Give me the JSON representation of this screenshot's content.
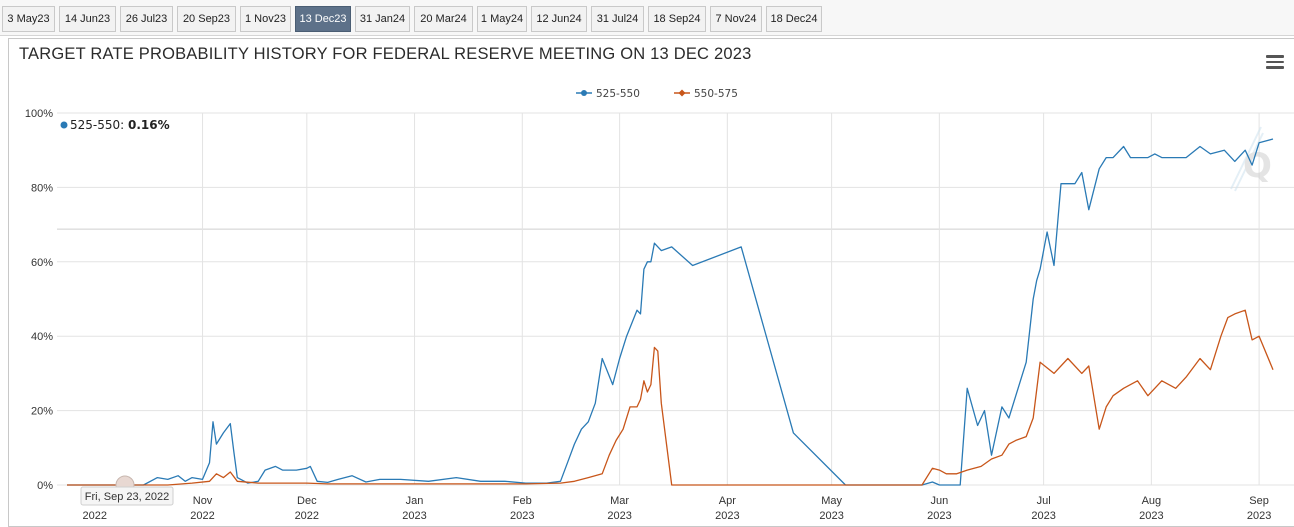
{
  "tabs": [
    {
      "label": "3 May23",
      "active": false
    },
    {
      "label": "14 Jun23",
      "active": false
    },
    {
      "label": "26 Jul23",
      "active": false
    },
    {
      "label": "20 Sep23",
      "active": false
    },
    {
      "label": "1 Nov23",
      "active": false
    },
    {
      "label": "13 Dec23",
      "active": true
    },
    {
      "label": "31 Jan24",
      "active": false
    },
    {
      "label": "20 Mar24",
      "active": false
    },
    {
      "label": "1 May24",
      "active": false
    },
    {
      "label": "12 Jun24",
      "active": false
    },
    {
      "label": "31 Jul24",
      "active": false
    },
    {
      "label": "18 Sep24",
      "active": false
    },
    {
      "label": "7 Nov24",
      "active": false
    },
    {
      "label": "18 Dec24",
      "active": false
    }
  ],
  "colors": {
    "tab_active": "#5d7189",
    "series_525": "#2a7ab5",
    "series_550": "#c8561a",
    "grid": "#e3e3e3"
  },
  "tooltip": {
    "series_label": "525-550: ",
    "value": "0.16%"
  },
  "crosshair_label": "Fri, Sep 23, 2022",
  "chart_data": {
    "type": "line",
    "title": "TARGET RATE PROBABILITY HISTORY FOR FEDERAL RESERVE MEETING ON 13 DEC 2023",
    "xlabel": "",
    "ylabel": "",
    "ylim": [
      0,
      100
    ],
    "xlim": [
      "2022-09-23",
      "2023-09-05"
    ],
    "y_ticks": [
      "0%",
      "20%",
      "40%",
      "60%",
      "80%",
      "100%"
    ],
    "x_ticks": [
      {
        "month": "",
        "year": "2022",
        "date": "2022-10-01"
      },
      {
        "month": "Nov",
        "year": "2022",
        "date": "2022-11-01"
      },
      {
        "month": "Dec",
        "year": "2022",
        "date": "2022-12-01"
      },
      {
        "month": "Jan",
        "year": "2023",
        "date": "2023-01-01"
      },
      {
        "month": "Feb",
        "year": "2023",
        "date": "2023-02-01"
      },
      {
        "month": "Mar",
        "year": "2023",
        "date": "2023-03-01"
      },
      {
        "month": "Apr",
        "year": "2023",
        "date": "2023-04-01"
      },
      {
        "month": "May",
        "year": "2023",
        "date": "2023-05-01"
      },
      {
        "month": "Jun",
        "year": "2023",
        "date": "2023-06-01"
      },
      {
        "month": "Jul",
        "year": "2023",
        "date": "2023-07-01"
      },
      {
        "month": "Aug",
        "year": "2023",
        "date": "2023-08-01"
      },
      {
        "month": "Sep",
        "year": "2023",
        "date": "2023-09-01"
      }
    ],
    "grid": true,
    "legend_position": "top-center",
    "series": [
      {
        "name": "525-550",
        "x": [
          "2022-09-23",
          "2022-10-15",
          "2022-10-19",
          "2022-10-22",
          "2022-10-25",
          "2022-10-27",
          "2022-10-29",
          "2022-11-01",
          "2022-11-03",
          "2022-11-04",
          "2022-11-05",
          "2022-11-07",
          "2022-11-09",
          "2022-11-10",
          "2022-11-11",
          "2022-11-14",
          "2022-11-17",
          "2022-11-19",
          "2022-11-22",
          "2022-11-24",
          "2022-11-28",
          "2022-12-01",
          "2022-12-02",
          "2022-12-04",
          "2022-12-07",
          "2022-12-10",
          "2022-12-14",
          "2022-12-18",
          "2022-12-22",
          "2022-12-28",
          "2023-01-05",
          "2023-01-13",
          "2023-01-20",
          "2023-01-27",
          "2023-02-02",
          "2023-02-08",
          "2023-02-12",
          "2023-02-14",
          "2023-02-16",
          "2023-02-18",
          "2023-02-20",
          "2023-02-22",
          "2023-02-24",
          "2023-02-27",
          "2023-03-01",
          "2023-03-03",
          "2023-03-06",
          "2023-03-07",
          "2023-03-08",
          "2023-03-09",
          "2023-03-10",
          "2023-03-11",
          "2023-03-13",
          "2023-03-16",
          "2023-03-22",
          "2023-04-05",
          "2023-04-20",
          "2023-05-05",
          "2023-05-20",
          "2023-05-27",
          "2023-05-30",
          "2023-06-01",
          "2023-06-02",
          "2023-06-05",
          "2023-06-07",
          "2023-06-09",
          "2023-06-12",
          "2023-06-14",
          "2023-06-16",
          "2023-06-19",
          "2023-06-21",
          "2023-06-23",
          "2023-06-26",
          "2023-06-28",
          "2023-06-29",
          "2023-06-30",
          "2023-07-02",
          "2023-07-04",
          "2023-07-06",
          "2023-07-10",
          "2023-07-12",
          "2023-07-14",
          "2023-07-17",
          "2023-07-19",
          "2023-07-21",
          "2023-07-24",
          "2023-07-26",
          "2023-07-28",
          "2023-07-31",
          "2023-08-02",
          "2023-08-04",
          "2023-08-08",
          "2023-08-11",
          "2023-08-15",
          "2023-08-18",
          "2023-08-22",
          "2023-08-25",
          "2023-08-28",
          "2023-08-30",
          "2023-09-01",
          "2023-09-05"
        ],
        "values": [
          0,
          0,
          2,
          1.5,
          2.5,
          1,
          2,
          1.5,
          6,
          17,
          11,
          14,
          16.5,
          9,
          2,
          0.5,
          1,
          4,
          5,
          4,
          4,
          4.5,
          5,
          1,
          0.7,
          1.5,
          2.5,
          0.8,
          1.5,
          1.5,
          1,
          2,
          1,
          1,
          0.5,
          0.5,
          1,
          6,
          11,
          15,
          17,
          22,
          34,
          27,
          34,
          40,
          47,
          46,
          58,
          60,
          60,
          65,
          63,
          64,
          59,
          64,
          14,
          0,
          0,
          0,
          0.8,
          0,
          0,
          0,
          0,
          26,
          16,
          20,
          8,
          21,
          18,
          24,
          33,
          50,
          55,
          58,
          68,
          59,
          81,
          81,
          84,
          74,
          85,
          88,
          88,
          91,
          88,
          88,
          88,
          89,
          88,
          88,
          88,
          91,
          89,
          90,
          87,
          90,
          86,
          92,
          93
        ]
      },
      {
        "name": "550-575",
        "x": [
          "2022-09-23",
          "2022-10-15",
          "2022-10-22",
          "2022-10-29",
          "2022-11-03",
          "2022-11-05",
          "2022-11-07",
          "2022-11-09",
          "2022-11-11",
          "2022-11-17",
          "2022-11-24",
          "2022-12-01",
          "2022-12-07",
          "2022-12-14",
          "2023-01-05",
          "2023-01-20",
          "2023-02-02",
          "2023-02-12",
          "2023-02-16",
          "2023-02-20",
          "2023-02-24",
          "2023-02-26",
          "2023-02-28",
          "2023-03-02",
          "2023-03-04",
          "2023-03-06",
          "2023-03-07",
          "2023-03-08",
          "2023-03-09",
          "2023-03-10",
          "2023-03-11",
          "2023-03-12",
          "2023-03-13",
          "2023-03-16",
          "2023-04-05",
          "2023-05-20",
          "2023-05-27",
          "2023-05-30",
          "2023-06-01",
          "2023-06-03",
          "2023-06-06",
          "2023-06-09",
          "2023-06-13",
          "2023-06-16",
          "2023-06-19",
          "2023-06-21",
          "2023-06-23",
          "2023-06-26",
          "2023-06-28",
          "2023-06-30",
          "2023-07-04",
          "2023-07-08",
          "2023-07-12",
          "2023-07-14",
          "2023-07-17",
          "2023-07-19",
          "2023-07-21",
          "2023-07-24",
          "2023-07-26",
          "2023-07-28",
          "2023-07-31",
          "2023-08-02",
          "2023-08-04",
          "2023-08-08",
          "2023-08-11",
          "2023-08-15",
          "2023-08-18",
          "2023-08-21",
          "2023-08-23",
          "2023-08-25",
          "2023-08-28",
          "2023-08-30",
          "2023-09-01",
          "2023-09-05"
        ],
        "values": [
          0,
          0,
          0,
          0.5,
          1,
          3,
          2,
          3.5,
          1,
          0.5,
          0.5,
          0.5,
          0.3,
          0.3,
          0.3,
          0.3,
          0.3,
          0.5,
          1,
          2,
          3,
          8,
          12,
          15,
          21,
          21,
          23,
          28,
          25,
          27,
          37,
          36,
          22,
          0,
          0,
          0,
          0,
          4.5,
          4,
          3,
          3,
          4,
          5,
          7,
          8,
          11,
          12,
          13,
          18,
          33,
          30,
          34,
          30,
          32,
          15,
          21,
          24,
          26,
          27,
          28,
          24,
          26,
          28,
          26,
          29,
          34,
          31,
          40,
          45,
          46,
          47,
          39,
          40,
          31
        ]
      }
    ]
  }
}
